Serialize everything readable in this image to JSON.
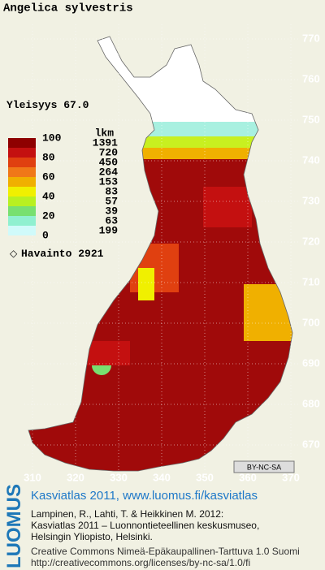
{
  "title": "Angelica sylvestris",
  "frequency": {
    "label": "Yleisyys",
    "value": "67.0"
  },
  "legend": {
    "scale": [
      100,
      80,
      60,
      40,
      20,
      0
    ],
    "count_header": "lkm",
    "counts": [
      1391,
      720,
      450,
      264,
      153,
      83,
      57,
      39,
      63,
      199
    ],
    "colors": [
      "#8e0000",
      "#c41010",
      "#e04010",
      "#f07818",
      "#f0b000",
      "#f0f000",
      "#b8f020",
      "#78e070",
      "#90f0d0",
      "#d0fafa"
    ]
  },
  "observations": {
    "label": "Havainto",
    "value": 2921
  },
  "map": {
    "y_labels": [
      770,
      760,
      750,
      740,
      730,
      720,
      710,
      700,
      690,
      680,
      670
    ],
    "x_labels": [
      310,
      320,
      330,
      340,
      350,
      360,
      370
    ]
  },
  "license_badge": "BY-NC-SA",
  "footer": {
    "logo": "LUOMUS",
    "site": "Kasviatlas 2011, www.luomus.fi/kasviatlas",
    "citation": [
      "Lampinen, R., Lahti, T. & Heikkinen M. 2012:",
      "Kasviatlas 2011 – Luonnontieteellinen keskusmuseo,",
      "Helsingin Yliopisto, Helsinki."
    ],
    "license": "Creative Commons Nimeä-Epäkaupallinen-Tarttuva 1.0 Suomi",
    "license_url": "http://creativecommons.org/licenses/by-nc-sa/1.0/fi"
  }
}
